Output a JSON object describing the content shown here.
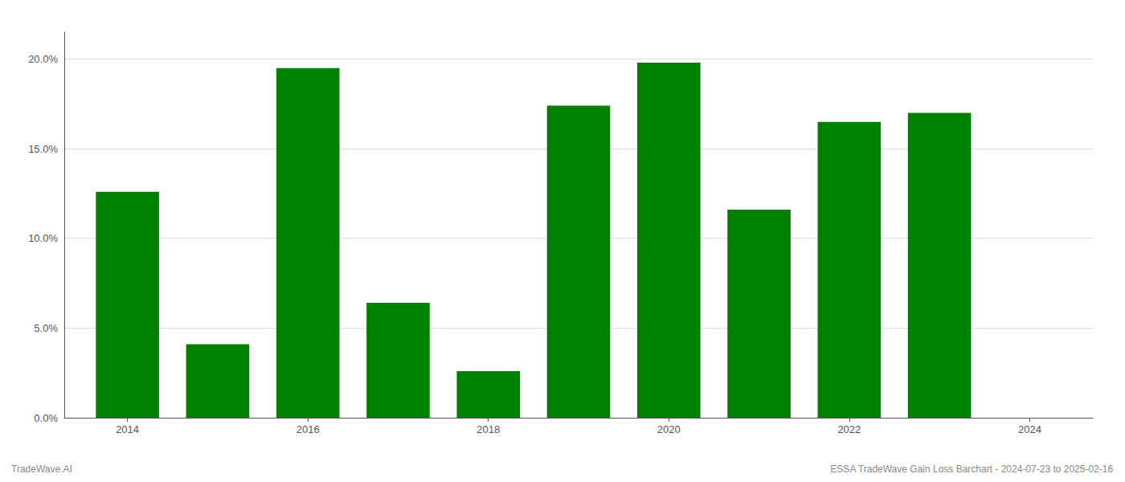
{
  "chart_data": {
    "type": "bar",
    "x": [
      2014,
      2015,
      2016,
      2017,
      2018,
      2019,
      2020,
      2021,
      2022,
      2023
    ],
    "values": [
      0.126,
      0.041,
      0.195,
      0.064,
      0.026,
      0.174,
      0.198,
      0.116,
      0.165,
      0.17
    ],
    "color": "#008000",
    "xlim": [
      2013.3,
      2024.7
    ],
    "xticks": [
      2014,
      2016,
      2018,
      2020,
      2022,
      2024
    ],
    "ylim": [
      0,
      0.215
    ],
    "yticks": [
      {
        "value": 0.0,
        "label": "0.0%"
      },
      {
        "value": 0.05,
        "label": "5.0%"
      },
      {
        "value": 0.1,
        "label": "10.0%"
      },
      {
        "value": 0.15,
        "label": "15.0%"
      },
      {
        "value": 0.2,
        "label": "20.0%"
      }
    ],
    "grid": true,
    "annotations": [
      "TradeWave.AI",
      "ESSA TradeWave Gain Loss Barchart - 2024-07-23 to 2025-02-16"
    ]
  }
}
